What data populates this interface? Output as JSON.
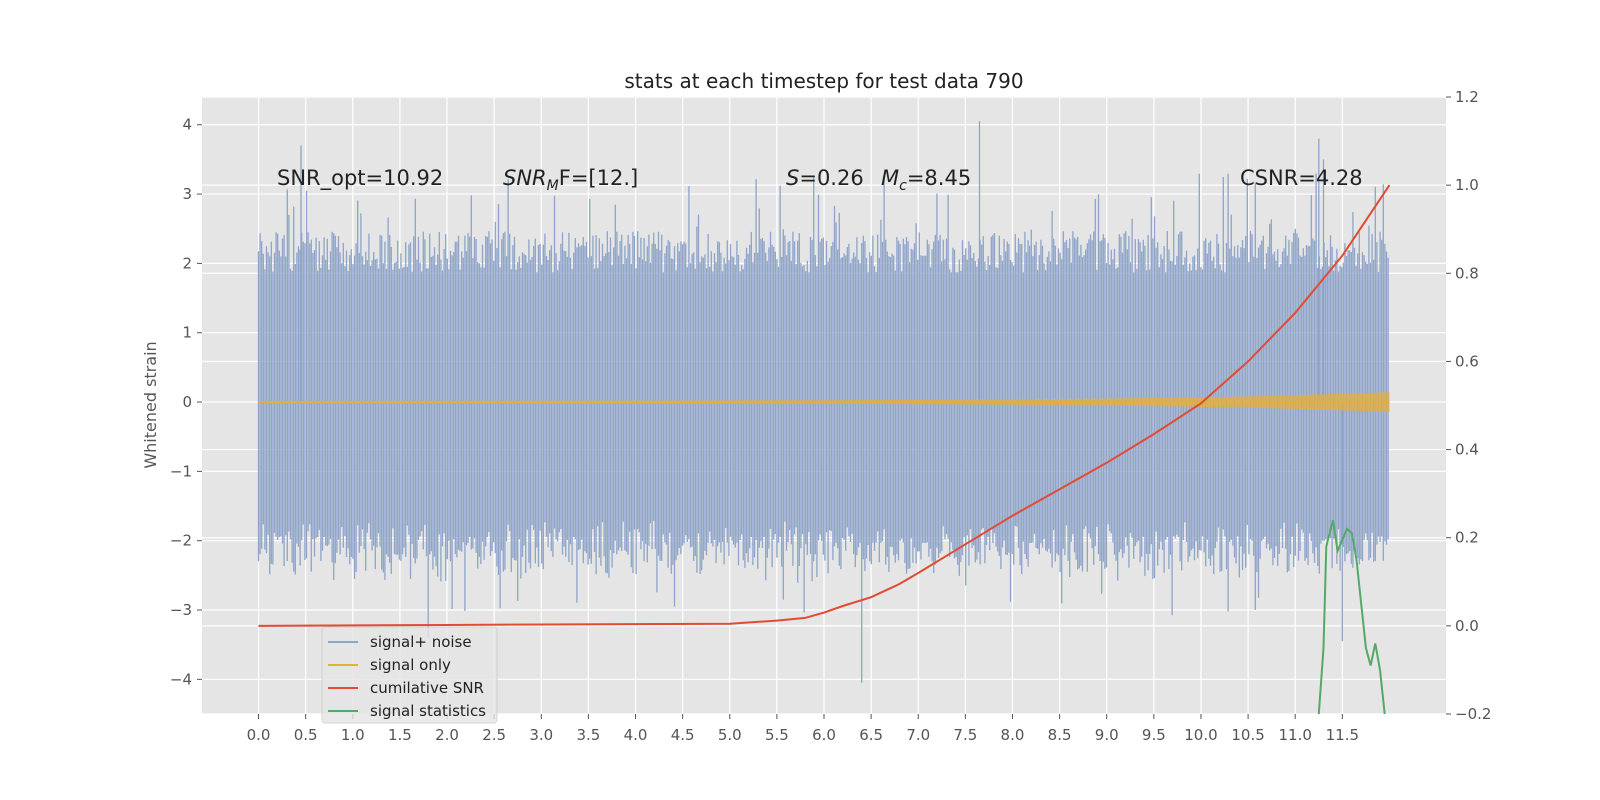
{
  "chart_data": {
    "type": "line",
    "title": "stats at each timestep for test data 790",
    "ylabel": "Whitened strain",
    "xlim": [
      -0.6,
      12.6
    ],
    "ylim": [
      -4.5,
      4.4
    ],
    "y2lim": [
      -0.2,
      1.2
    ],
    "xticks": [
      "0.0",
      "0.5",
      "1.0",
      "1.5",
      "2.0",
      "2.5",
      "3.0",
      "3.5",
      "4.0",
      "4.5",
      "5.0",
      "5.5",
      "6.0",
      "6.5",
      "7.0",
      "7.5",
      "8.0",
      "8.5",
      "9.0",
      "9.5",
      "10.0",
      "10.5",
      "11.0",
      "11.5"
    ],
    "xtick_values": [
      0,
      0.5,
      1,
      1.5,
      2,
      2.5,
      3,
      3.5,
      4,
      4.5,
      5,
      5.5,
      6,
      6.5,
      7,
      7.5,
      8,
      8.5,
      9,
      9.5,
      10,
      10.5,
      11,
      11.5
    ],
    "yticks": [
      "4",
      "3",
      "2",
      "1",
      "0",
      "−1",
      "−2",
      "−3",
      "−4"
    ],
    "ytick_values": [
      4,
      3,
      2,
      1,
      0,
      -1,
      -2,
      -3,
      -4
    ],
    "y2ticks": [
      "1.2",
      "1.0",
      "0.8",
      "0.6",
      "0.4",
      "0.2",
      "0.0",
      "−0.2"
    ],
    "y2tick_values": [
      1.2,
      1.0,
      0.8,
      0.6,
      0.4,
      0.2,
      0.0,
      -0.2
    ],
    "grid": true,
    "legend_position": "lower-left",
    "annotations": {
      "snr_opt": "SNR_opt=10.92",
      "snr_mf_main": "SNR",
      "snr_mf_sub": "M",
      "snr_mf_rest": "F=[12.]",
      "s_sym": "S",
      "s_val": "=0.26",
      "mc_sym": "M",
      "mc_sub": "c",
      "mc_val": "=8.45",
      "csnr": "CSNR=4.28"
    },
    "series": [
      {
        "name": "signal+ noise",
        "color": "#8ea4c8",
        "axis": "left",
        "x_range": [
          0,
          12.0
        ],
        "typical_band": [
          -2.0,
          2.2
        ],
        "extremes_x": [
          0.45,
          1.8,
          6.4,
          7.65,
          11.25,
          11.3,
          11.5
        ],
        "extremes_y": [
          3.7,
          -3.4,
          -4.05,
          4.05,
          3.8,
          3.5,
          -3.45
        ]
      },
      {
        "name": "signal only",
        "color": "#e5ae38",
        "axis": "left",
        "envelope_x": [
          0,
          4,
          6,
          8,
          9,
          10,
          10.5,
          11,
          11.5,
          12.0
        ],
        "envelope_amp": [
          0.015,
          0.02,
          0.025,
          0.04,
          0.05,
          0.07,
          0.08,
          0.1,
          0.12,
          0.14
        ]
      },
      {
        "name": "cumilative SNR",
        "color": "#e24a33",
        "axis": "right",
        "x": [
          0,
          1,
          2,
          3,
          4,
          5,
          5.5,
          5.8,
          6.0,
          6.2,
          6.5,
          6.8,
          7.0,
          7.5,
          8.0,
          8.5,
          9.0,
          9.5,
          10.0,
          10.5,
          11.0,
          11.5,
          12.0
        ],
        "y": [
          0,
          0.001,
          0.002,
          0.003,
          0.004,
          0.005,
          0.012,
          0.018,
          0.03,
          0.045,
          0.065,
          0.095,
          0.12,
          0.185,
          0.25,
          0.31,
          0.37,
          0.435,
          0.505,
          0.6,
          0.71,
          0.84,
          1.0
        ]
      },
      {
        "name": "signal statistics",
        "color": "#348abd",
        "plot_color": "#55a868",
        "axis": "right",
        "x": [
          11.25,
          11.3,
          11.33,
          11.4,
          11.45,
          11.55,
          11.6,
          11.65,
          11.7,
          11.75,
          11.8,
          11.85,
          11.9,
          11.95
        ],
        "y": [
          -0.2,
          -0.05,
          0.18,
          0.24,
          0.17,
          0.22,
          0.21,
          0.15,
          0.05,
          -0.05,
          -0.09,
          -0.04,
          -0.1,
          -0.2
        ]
      }
    ]
  }
}
